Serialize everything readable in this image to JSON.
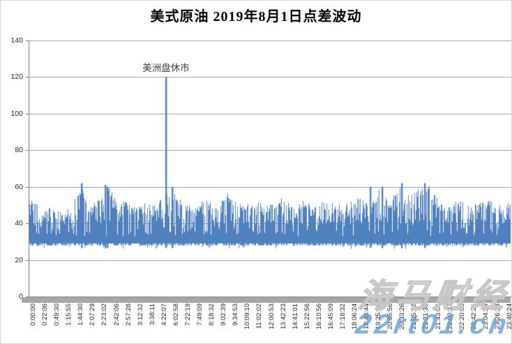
{
  "chart_data": {
    "type": "area",
    "title": "美式原油 2019年8月1日点差波动",
    "xlabel": "",
    "ylabel": "",
    "ylim": [
      0,
      140
    ],
    "grid": true,
    "yticks": [
      140,
      120,
      100,
      80,
      60,
      40,
      20,
      0
    ],
    "xticks": [
      "0:00:00",
      "0:22:06",
      "0:49:30",
      "1:15:55",
      "1:44:30",
      "2:07:29",
      "2:23:02",
      "2:42:06",
      "2:57:28",
      "3:12:32",
      "3:38:11",
      "4:22:07",
      "6:02:58",
      "7:22:19",
      "7:49:09",
      "8:18:32",
      "9:02:39",
      "9:34:53",
      "10:09:10",
      "11:02:02",
      "12:00:53",
      "13:42:23",
      "14:41:01",
      "15:22:56",
      "16:10:56",
      "16:45:09",
      "17:18:32",
      "18:06:24",
      "18:43:44",
      "19:25:56",
      "20:05:56",
      "20:33:26",
      "21:05:12",
      "21:21:38",
      "21:43:06",
      "22:00:37",
      "22:20:03",
      "22:42:26",
      "23:04:29",
      "23:26:23",
      "23:40:24"
    ],
    "annotation": {
      "text": "美洲盘休市",
      "x_frac": 0.285,
      "points_at_value": 120
    },
    "series_name": "点差",
    "series_color": "#4f81bd",
    "baseline_band": {
      "bottom_min": 26,
      "bottom_typical": 28,
      "top_typical_range": [
        40,
        56
      ]
    },
    "envelope": [
      [
        0,
        53
      ],
      [
        0.01,
        55
      ],
      [
        0.03,
        48
      ],
      [
        0.05,
        50
      ],
      [
        0.07,
        47
      ],
      [
        0.09,
        52
      ],
      [
        0.11,
        62
      ],
      [
        0.12,
        50
      ],
      [
        0.145,
        55
      ],
      [
        0.16,
        61
      ],
      [
        0.17,
        60
      ],
      [
        0.185,
        48
      ],
      [
        0.2,
        55
      ],
      [
        0.22,
        50
      ],
      [
        0.24,
        52
      ],
      [
        0.26,
        50
      ],
      [
        0.27,
        55
      ],
      [
        0.295,
        60
      ],
      [
        0.31,
        55
      ],
      [
        0.33,
        50
      ],
      [
        0.35,
        52
      ],
      [
        0.37,
        55
      ],
      [
        0.39,
        50
      ],
      [
        0.41,
        58
      ],
      [
        0.43,
        52
      ],
      [
        0.45,
        50
      ],
      [
        0.47,
        53
      ],
      [
        0.49,
        50
      ],
      [
        0.51,
        52
      ],
      [
        0.53,
        55
      ],
      [
        0.55,
        50
      ],
      [
        0.57,
        53
      ],
      [
        0.59,
        50
      ],
      [
        0.61,
        55
      ],
      [
        0.63,
        52
      ],
      [
        0.65,
        50
      ],
      [
        0.67,
        52
      ],
      [
        0.69,
        55
      ],
      [
        0.71,
        52
      ],
      [
        0.73,
        60
      ],
      [
        0.75,
        52
      ],
      [
        0.77,
        62
      ],
      [
        0.785,
        55
      ],
      [
        0.8,
        58
      ],
      [
        0.815,
        60
      ],
      [
        0.83,
        62
      ],
      [
        0.845,
        55
      ],
      [
        0.86,
        50
      ],
      [
        0.88,
        52
      ],
      [
        0.9,
        54
      ],
      [
        0.92,
        50
      ],
      [
        0.94,
        52
      ],
      [
        0.96,
        54
      ],
      [
        0.98,
        50
      ],
      [
        1,
        52
      ]
    ],
    "peaks": [
      {
        "x_frac": 0.109,
        "value": 62
      },
      {
        "x_frac": 0.158,
        "value": 61
      },
      {
        "x_frac": 0.163,
        "value": 60
      },
      {
        "x_frac": 0.285,
        "value": 120,
        "label": "美洲盘休市"
      },
      {
        "x_frac": 0.297,
        "value": 60
      },
      {
        "x_frac": 0.71,
        "value": 60
      },
      {
        "x_frac": 0.735,
        "value": 60
      },
      {
        "x_frac": 0.775,
        "value": 62
      },
      {
        "x_frac": 0.823,
        "value": 62
      }
    ],
    "noise_seed": 20190801
  },
  "watermark": {
    "brand": "海马财经",
    "url": "22rt01.cn"
  },
  "colors": {
    "series": "#4f81bd",
    "gridline": "#a6a6a6",
    "axis": "#808080",
    "axis_band": "#a6a6a6",
    "tick_label": "#262626",
    "watermark_gray": "#c6c6c6",
    "watermark_blue": "#609cd8"
  }
}
